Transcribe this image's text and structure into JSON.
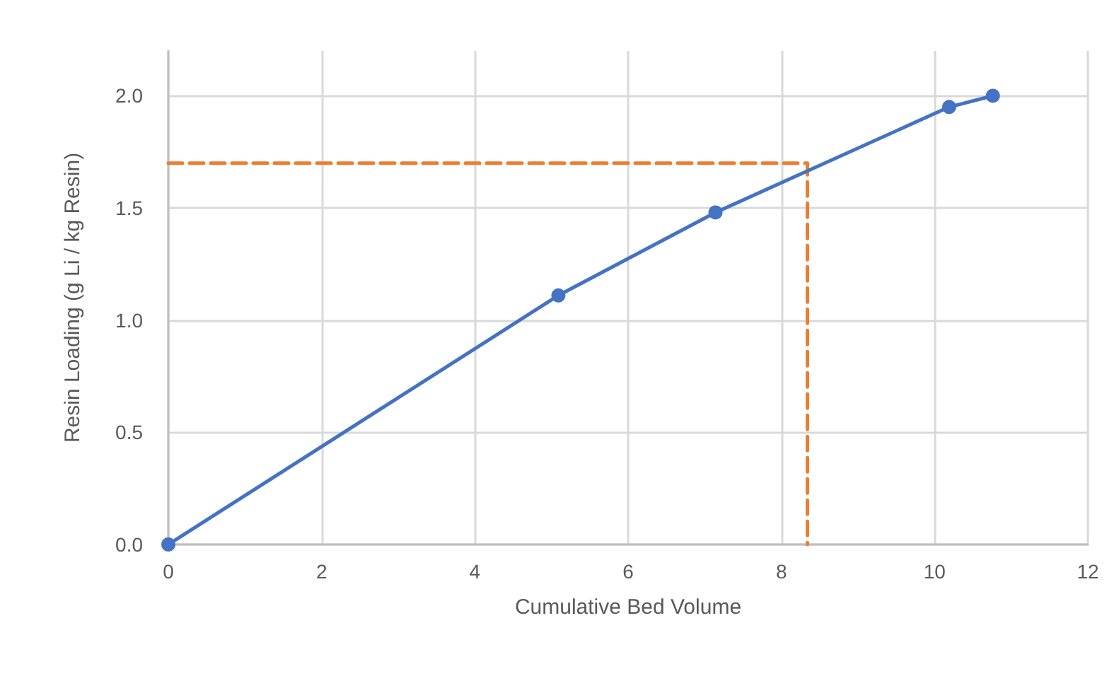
{
  "chart_data": {
    "type": "line",
    "xlabel": "Cumulative Bed Volume",
    "ylabel": "Resin Loading (g Li / kg Resin)",
    "xlim": [
      0,
      12
    ],
    "xticks": [
      0,
      2,
      4,
      6,
      8,
      10,
      12
    ],
    "ylim": [
      0,
      2.2
    ],
    "yticks": [
      {
        "value": 0,
        "label": "0.0"
      },
      {
        "value": 0.5,
        "label": "0.5"
      },
      {
        "value": 1,
        "label": "1.0"
      },
      {
        "value": 1.5,
        "label": "1.5"
      },
      {
        "value": 2,
        "label": "2.0"
      }
    ],
    "grid": true,
    "series": [
      {
        "color": "#4472c4",
        "x": [
          0,
          5.09,
          7.14,
          10.19,
          10.76
        ],
        "values": [
          0,
          1.11,
          1.48,
          1.95,
          2.0
        ],
        "marker": "circle",
        "line_style": "solid"
      },
      {
        "color": "#ed7d31",
        "x": [
          0,
          8.34,
          8.34
        ],
        "values": [
          1.7,
          1.7,
          0
        ],
        "marker": "none",
        "line_style": "dashed"
      }
    ]
  }
}
